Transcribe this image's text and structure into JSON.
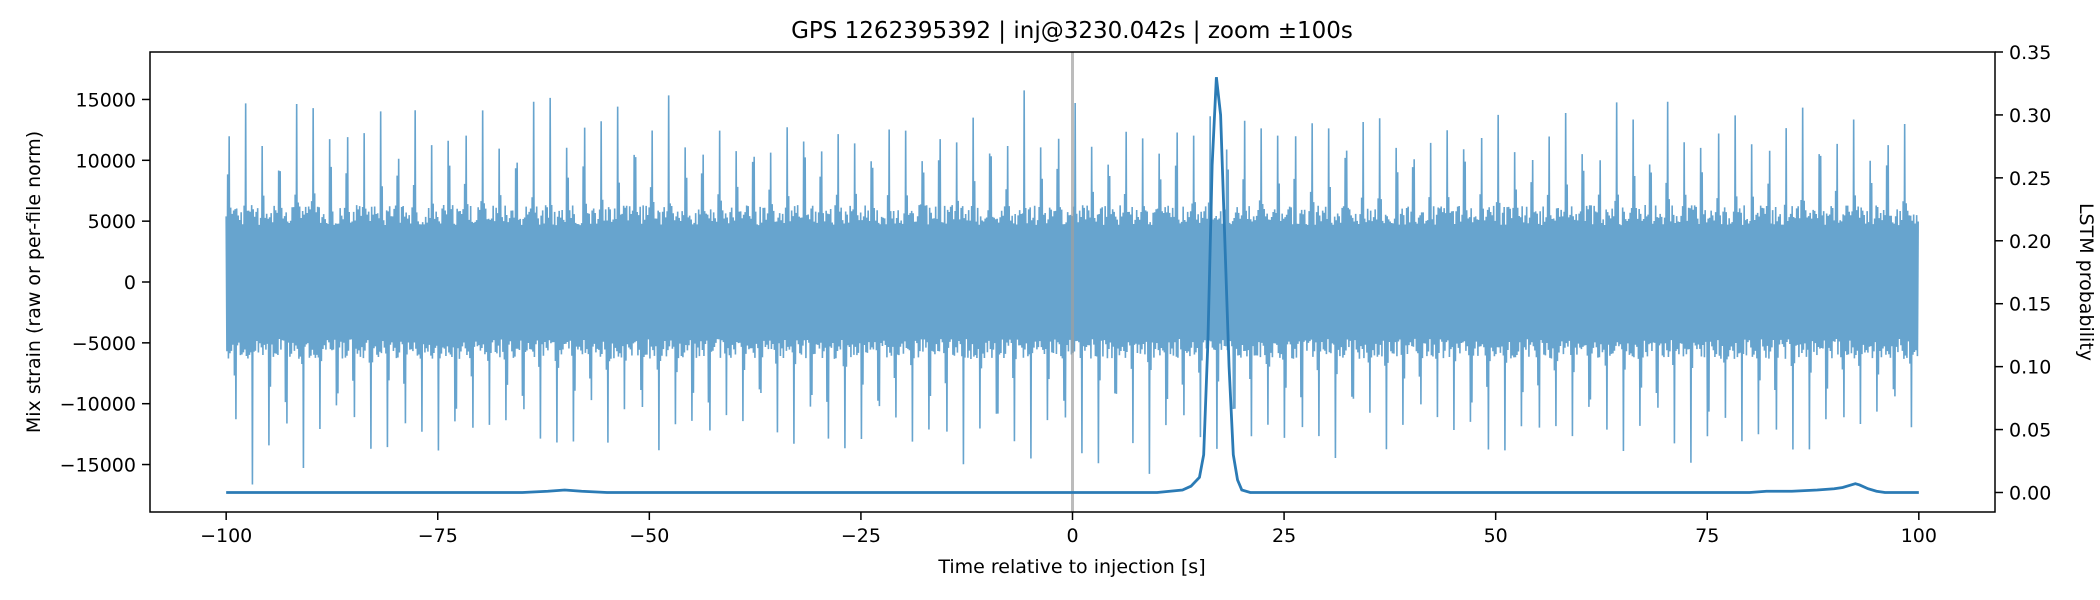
{
  "chart_data": {
    "type": "line",
    "title": "GPS 1262395392 | inj@3230.042s | zoom ±100s",
    "xlabel": "Time relative to injection [s]",
    "ylabel_left": "Mix strain (raw or per-file norm)",
    "ylabel_right": "LSTM probability",
    "xlim": [
      -109,
      109
    ],
    "ylim_left": [
      -18900,
      18900
    ],
    "ylim_right": [
      -0.0155,
      0.35
    ],
    "xticks": [
      -100,
      -75,
      -50,
      -25,
      0,
      25,
      50,
      75,
      100
    ],
    "yticks_left": [
      -15000,
      -10000,
      -5000,
      0,
      5000,
      10000,
      15000
    ],
    "yticks_right": [
      0.0,
      0.05,
      0.1,
      0.15,
      0.2,
      0.25,
      0.3,
      0.35
    ],
    "yticks_right_labels": [
      "0.00",
      "0.05",
      "0.10",
      "0.15",
      "0.20",
      "0.25",
      "0.30",
      "0.35"
    ],
    "injection_marker_x": 0,
    "grid": false,
    "colors": {
      "strain": "#5f9fcb",
      "probability": "#2b7bb5",
      "marker": "#a0a0a0",
      "axes": "#000000"
    },
    "series": [
      {
        "axis": "left",
        "x_range": [
          -100,
          100
        ],
        "core_amplitude": 5500,
        "envelope_peak_range": [
          12500,
          16500
        ],
        "oscillation_period_s": 2.0
      },
      {
        "axis": "right",
        "x": [
          -100,
          -65,
          -62,
          -60,
          -58,
          -55,
          -50,
          0,
          10,
          13,
          14,
          15,
          15.5,
          16,
          16.5,
          17,
          17.5,
          18,
          18.5,
          19,
          19.5,
          20,
          21,
          25,
          80,
          82,
          85,
          88,
          90,
          91,
          92,
          92.5,
          93,
          94,
          95,
          96,
          100
        ],
        "y": [
          0.0,
          0.0,
          0.001,
          0.002,
          0.001,
          0.0,
          0.0,
          0.0,
          0.0,
          0.002,
          0.005,
          0.012,
          0.03,
          0.12,
          0.26,
          0.33,
          0.3,
          0.2,
          0.1,
          0.03,
          0.01,
          0.002,
          0.0,
          0.0,
          0.0,
          0.001,
          0.001,
          0.002,
          0.003,
          0.004,
          0.006,
          0.007,
          0.006,
          0.003,
          0.001,
          0.0,
          0.0
        ]
      }
    ]
  }
}
